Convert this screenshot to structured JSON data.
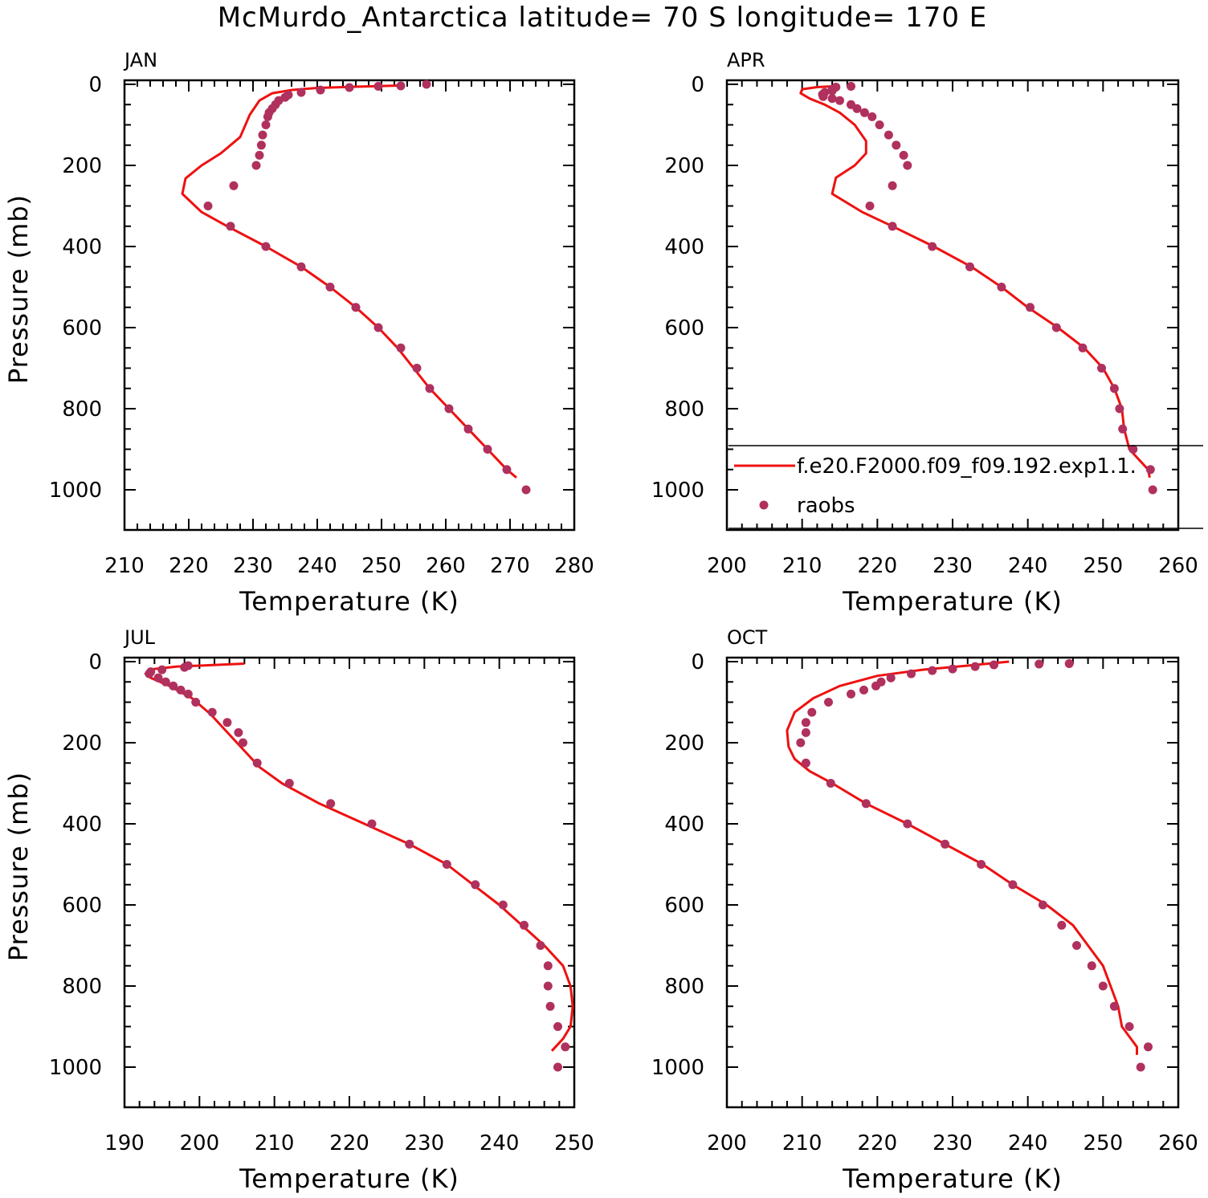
{
  "title": "McMurdo_Antarctica  latitude= 70 S longitude= 170 E",
  "colors": {
    "model_line": "#ee1111",
    "obs_marker": "#b0305e",
    "axes": "#000000",
    "background": "#ffffff"
  },
  "legend": {
    "location": "inside APR panel, lower-left",
    "entries": [
      {
        "label": "f.e20.F2000.f09_f09.192.exp1.1.",
        "style": "line"
      },
      {
        "label": "raobs",
        "style": "marker"
      }
    ]
  },
  "chart_data": [
    {
      "type": "line",
      "panel": "JAN",
      "xlabel": "Temperature (K)",
      "ylabel": "Pressure (mb)",
      "xlim": [
        210,
        280
      ],
      "ylim": [
        0,
        1000
      ],
      "y_inverted": true,
      "xticks": [
        210,
        220,
        230,
        240,
        250,
        260,
        270,
        280
      ],
      "yticks": [
        0,
        200,
        400,
        600,
        800,
        1000
      ],
      "series": [
        {
          "style": "line",
          "points": [
            [
              253,
              3
            ],
            [
              246,
              6
            ],
            [
              240,
              9
            ],
            [
              236,
              14
            ],
            [
              233,
              22
            ],
            [
              231,
              40
            ],
            [
              229.5,
              75
            ],
            [
              228,
              130
            ],
            [
              225,
              170
            ],
            [
              222,
              200
            ],
            [
              219.5,
              232
            ],
            [
              219,
              270
            ],
            [
              222,
              315
            ],
            [
              226,
              350
            ],
            [
              232,
              400
            ],
            [
              237.5,
              450
            ],
            [
              242,
              500
            ],
            [
              246,
              550
            ],
            [
              249.5,
              600
            ],
            [
              252.5,
              650
            ],
            [
              255,
              700
            ],
            [
              257.5,
              750
            ],
            [
              260.5,
              800
            ],
            [
              263.5,
              850
            ],
            [
              266.5,
              900
            ],
            [
              269.5,
              950
            ],
            [
              271,
              970
            ]
          ]
        },
        {
          "style": "marker",
          "points": [
            [
              257,
              0
            ],
            [
              253,
              4
            ],
            [
              249.5,
              5
            ],
            [
              245,
              8
            ],
            [
              240.5,
              14
            ],
            [
              237.5,
              20
            ],
            [
              235.5,
              26
            ],
            [
              235,
              32
            ],
            [
              234,
              40
            ],
            [
              233.5,
              50
            ],
            [
              233,
              60
            ],
            [
              232.5,
              70
            ],
            [
              232.3,
              80
            ],
            [
              232,
              100
            ],
            [
              231.5,
              125
            ],
            [
              231.3,
              150
            ],
            [
              231,
              175
            ],
            [
              230.5,
              200
            ],
            [
              227,
              250
            ],
            [
              223,
              300
            ],
            [
              226.5,
              350
            ],
            [
              232,
              400
            ],
            [
              237.5,
              450
            ],
            [
              242,
              500
            ],
            [
              246,
              550
            ],
            [
              249.5,
              600
            ],
            [
              253,
              650
            ],
            [
              255.5,
              700
            ],
            [
              257.5,
              750
            ],
            [
              260.5,
              800
            ],
            [
              263.5,
              850
            ],
            [
              266.5,
              900
            ],
            [
              269.5,
              950
            ],
            [
              272.5,
              1000
            ]
          ]
        }
      ]
    },
    {
      "type": "line",
      "panel": "APR",
      "xlabel": "Temperature (K)",
      "ylabel": "",
      "xlim": [
        200,
        260
      ],
      "ylim": [
        0,
        1000
      ],
      "y_inverted": true,
      "xticks": [
        200,
        210,
        220,
        230,
        240,
        250,
        260
      ],
      "yticks": [
        0,
        200,
        400,
        600,
        800,
        1000
      ],
      "series": [
        {
          "style": "line",
          "points": [
            [
              214,
              5
            ],
            [
              212,
              7
            ],
            [
              210,
              12
            ],
            [
              209.8,
              22
            ],
            [
              211,
              35
            ],
            [
              213,
              50
            ],
            [
              215,
              70
            ],
            [
              217,
              100
            ],
            [
              218.5,
              140
            ],
            [
              218.5,
              170
            ],
            [
              217,
              200
            ],
            [
              214.5,
              230
            ],
            [
              214,
              270
            ],
            [
              218,
              315
            ],
            [
              222,
              350
            ],
            [
              227.5,
              400
            ],
            [
              232.5,
              450
            ],
            [
              236.5,
              500
            ],
            [
              240,
              550
            ],
            [
              244,
              600
            ],
            [
              247.5,
              650
            ],
            [
              250,
              700
            ],
            [
              251.5,
              750
            ],
            [
              252.5,
              800
            ],
            [
              252.8,
              850
            ],
            [
              253.5,
              900
            ],
            [
              256,
              950
            ],
            [
              256.2,
              970
            ]
          ]
        },
        {
          "style": "marker",
          "points": [
            [
              216.5,
              5
            ],
            [
              214.5,
              7
            ],
            [
              214,
              12
            ],
            [
              214,
              16
            ],
            [
              213,
              20
            ],
            [
              212.7,
              25
            ],
            [
              212.8,
              30
            ],
            [
              214,
              35
            ],
            [
              215,
              40
            ],
            [
              216.5,
              50
            ],
            [
              217.3,
              60
            ],
            [
              218.3,
              70
            ],
            [
              219.3,
              80
            ],
            [
              220.3,
              100
            ],
            [
              221.5,
              125
            ],
            [
              222.5,
              150
            ],
            [
              223.5,
              175
            ],
            [
              224,
              200
            ],
            [
              222,
              250
            ],
            [
              219,
              300
            ],
            [
              222,
              350
            ],
            [
              227.3,
              400
            ],
            [
              232.3,
              450
            ],
            [
              236.5,
              500
            ],
            [
              240.3,
              550
            ],
            [
              243.8,
              600
            ],
            [
              247.3,
              650
            ],
            [
              249.8,
              700
            ],
            [
              251.5,
              750
            ],
            [
              252.2,
              800
            ],
            [
              252.6,
              850
            ],
            [
              254,
              900
            ],
            [
              256.3,
              950
            ],
            [
              256.6,
              1000
            ]
          ]
        }
      ]
    },
    {
      "type": "line",
      "panel": "JUL",
      "xlabel": "Temperature (K)",
      "ylabel": "Pressure (mb)",
      "xlim": [
        190,
        250
      ],
      "ylim": [
        0,
        1000
      ],
      "y_inverted": true,
      "xticks": [
        190,
        200,
        210,
        220,
        230,
        240,
        250
      ],
      "yticks": [
        0,
        200,
        400,
        600,
        800,
        1000
      ],
      "series": [
        {
          "style": "line",
          "points": [
            [
              206,
              5
            ],
            [
              200,
              10
            ],
            [
              197,
              12
            ],
            [
              194,
              18
            ],
            [
              192.8,
              30
            ],
            [
              193.5,
              40
            ],
            [
              196,
              60
            ],
            [
              199,
              90
            ],
            [
              201.5,
              130
            ],
            [
              203.5,
              170
            ],
            [
              205,
              200
            ],
            [
              206.5,
              230
            ],
            [
              208,
              260
            ],
            [
              211,
              300
            ],
            [
              216,
              350
            ],
            [
              222,
              400
            ],
            [
              228,
              450
            ],
            [
              233,
              500
            ],
            [
              236.5,
              550
            ],
            [
              240,
              600
            ],
            [
              243,
              650
            ],
            [
              246,
              700
            ],
            [
              248.5,
              750
            ],
            [
              249.5,
              800
            ],
            [
              249.8,
              850
            ],
            [
              249.5,
              900
            ],
            [
              248.5,
              930
            ],
            [
              247,
              960
            ]
          ]
        },
        {
          "style": "marker",
          "points": [
            [
              198.5,
              10
            ],
            [
              198,
              14
            ],
            [
              195,
              20
            ],
            [
              193.5,
              25
            ],
            [
              193.3,
              30
            ],
            [
              194.5,
              40
            ],
            [
              195.5,
              50
            ],
            [
              196.5,
              60
            ],
            [
              197.5,
              70
            ],
            [
              198.5,
              80
            ],
            [
              199.5,
              100
            ],
            [
              201.7,
              125
            ],
            [
              203.7,
              150
            ],
            [
              205.2,
              175
            ],
            [
              205.8,
              200
            ],
            [
              207.7,
              250
            ],
            [
              212,
              300
            ],
            [
              217.5,
              350
            ],
            [
              223,
              400
            ],
            [
              228,
              450
            ],
            [
              233,
              500
            ],
            [
              236.8,
              550
            ],
            [
              240.5,
              600
            ],
            [
              243.3,
              650
            ],
            [
              245.5,
              700
            ],
            [
              246.5,
              750
            ],
            [
              246.5,
              800
            ],
            [
              246.8,
              850
            ],
            [
              247.8,
              900
            ],
            [
              248.8,
              950
            ],
            [
              247.8,
              1000
            ]
          ]
        }
      ]
    },
    {
      "type": "line",
      "panel": "OCT",
      "xlabel": "Temperature (K)",
      "ylabel": "",
      "xlim": [
        200,
        260
      ],
      "ylim": [
        0,
        1000
      ],
      "y_inverted": true,
      "xticks": [
        200,
        210,
        220,
        230,
        240,
        250,
        260
      ],
      "yticks": [
        0,
        200,
        400,
        600,
        800,
        1000
      ],
      "series": [
        {
          "style": "line",
          "points": [
            [
              237.5,
              0
            ],
            [
              232,
              10
            ],
            [
              226,
              20
            ],
            [
              220,
              35
            ],
            [
              215,
              60
            ],
            [
              211.5,
              90
            ],
            [
              209,
              125
            ],
            [
              208,
              170
            ],
            [
              208.2,
              210
            ],
            [
              209,
              240
            ],
            [
              211,
              270
            ],
            [
              214,
              300
            ],
            [
              218.5,
              350
            ],
            [
              224,
              400
            ],
            [
              229,
              450
            ],
            [
              234,
              500
            ],
            [
              238,
              550
            ],
            [
              242.5,
              600
            ],
            [
              246,
              650
            ],
            [
              248,
              700
            ],
            [
              250,
              750
            ],
            [
              251,
              800
            ],
            [
              252,
              850
            ],
            [
              252.5,
              900
            ],
            [
              254.5,
              950
            ],
            [
              254.5,
              970
            ]
          ]
        },
        {
          "style": "marker",
          "points": [
            [
              245.5,
              5
            ],
            [
              241.5,
              6
            ],
            [
              235.5,
              8
            ],
            [
              233,
              12
            ],
            [
              230,
              18
            ],
            [
              227.3,
              22
            ],
            [
              224.5,
              30
            ],
            [
              221.8,
              40
            ],
            [
              220.5,
              50
            ],
            [
              219.8,
              60
            ],
            [
              218.2,
              70
            ],
            [
              216.5,
              80
            ],
            [
              213.5,
              100
            ],
            [
              211.3,
              125
            ],
            [
              210.5,
              150
            ],
            [
              210.5,
              175
            ],
            [
              209.8,
              200
            ],
            [
              210.5,
              250
            ],
            [
              213.8,
              300
            ],
            [
              218.5,
              350
            ],
            [
              224,
              400
            ],
            [
              229,
              450
            ],
            [
              233.8,
              500
            ],
            [
              238,
              550
            ],
            [
              242,
              600
            ],
            [
              244.5,
              650
            ],
            [
              246.5,
              700
            ],
            [
              248.5,
              750
            ],
            [
              250,
              800
            ],
            [
              251.5,
              850
            ],
            [
              253.5,
              900
            ],
            [
              256,
              950
            ],
            [
              255,
              1000
            ]
          ]
        }
      ]
    }
  ]
}
